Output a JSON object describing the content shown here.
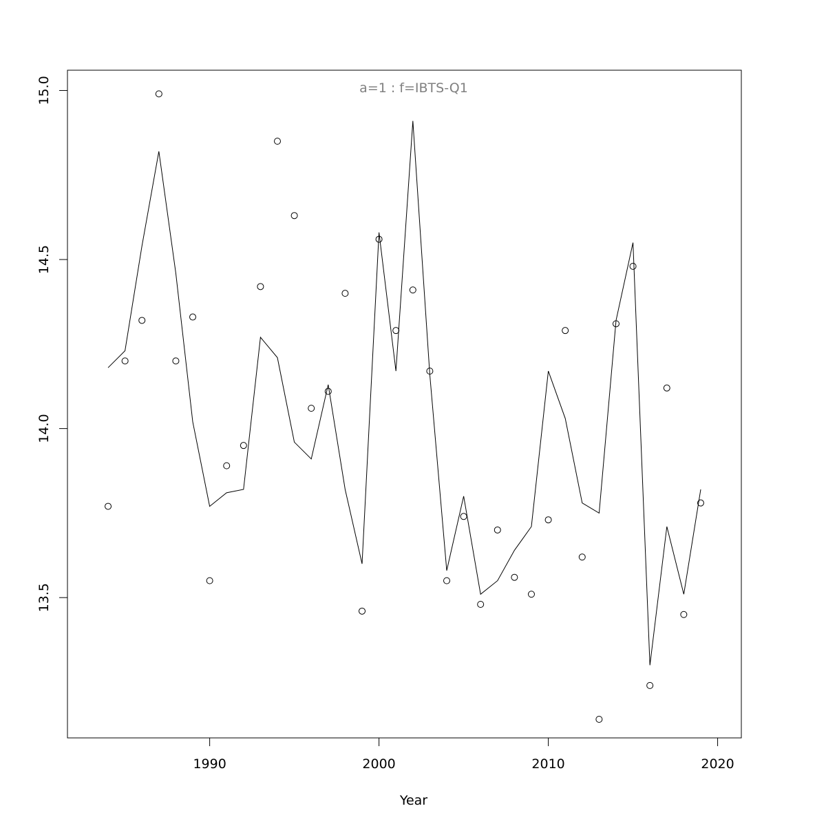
{
  "chart_data": {
    "type": "scatter",
    "title": "a=1  :  f=IBTS-Q1",
    "xlabel": "Year",
    "ylabel": "",
    "xlim": [
      1981.6,
      2021.4
    ],
    "ylim": [
      13.085,
      15.06
    ],
    "x_ticks": [
      1990,
      2000,
      2010,
      2020
    ],
    "y_ticks": [
      13.5,
      14.0,
      14.5,
      15.0
    ],
    "y_tick_labels": [
      "13.5",
      "14.0",
      "14.5",
      "15.0"
    ],
    "grid": false,
    "legend": "none",
    "series": [
      {
        "kind": "points",
        "marker": "open-circle",
        "x": [
          1984,
          1985,
          1986,
          1987,
          1988,
          1989,
          1990,
          1991,
          1992,
          1993,
          1994,
          1995,
          1996,
          1997,
          1998,
          1999,
          2000,
          2001,
          2002,
          2003,
          2004,
          2005,
          2006,
          2007,
          2008,
          2009,
          2010,
          2011,
          2012,
          2013,
          2014,
          2015,
          2016,
          2017,
          2018,
          2019
        ],
        "y": [
          13.77,
          14.2,
          14.32,
          14.99,
          14.2,
          14.33,
          13.55,
          13.89,
          13.95,
          14.42,
          14.85,
          14.63,
          14.06,
          14.11,
          14.4,
          13.46,
          14.56,
          14.29,
          14.41,
          14.17,
          13.55,
          13.74,
          13.48,
          13.7,
          13.56,
          13.51,
          13.73,
          14.29,
          13.62,
          13.14,
          14.31,
          14.48,
          13.24,
          14.12,
          13.45,
          13.78
        ]
      },
      {
        "kind": "line",
        "x": [
          1984,
          1985,
          1986,
          1987,
          1988,
          1989,
          1990,
          1991,
          1992,
          1993,
          1994,
          1995,
          1996,
          1997,
          1998,
          1999,
          2000,
          2001,
          2002,
          2003,
          2004,
          2005,
          2006,
          2007,
          2008,
          2009,
          2010,
          2011,
          2012,
          2013,
          2014,
          2015,
          2016,
          2017,
          2018,
          2019
        ],
        "y": [
          14.18,
          14.23,
          14.54,
          14.82,
          14.46,
          14.02,
          13.77,
          13.81,
          13.82,
          14.27,
          14.21,
          13.96,
          13.91,
          14.13,
          13.82,
          13.6,
          14.58,
          14.17,
          14.91,
          14.16,
          13.58,
          13.8,
          13.51,
          13.55,
          13.64,
          13.71,
          14.17,
          14.03,
          13.78,
          13.75,
          14.32,
          14.55,
          13.3,
          13.71,
          13.51,
          13.82
        ]
      }
    ]
  }
}
